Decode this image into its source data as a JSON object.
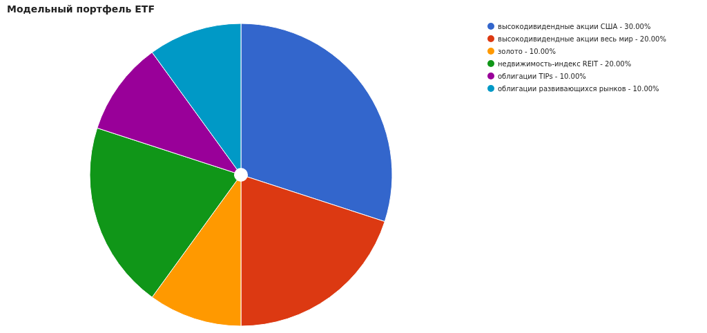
{
  "chart_data": {
    "type": "pie",
    "title": "Модельный портфель ETF",
    "categories": [
      "высокодивидендные акции США - 30.00%",
      "высокодивидендные акции весь мир - 20.00%",
      "золото - 10.00%",
      "недвижимость-индекс REIT - 20.00%",
      "облигации TIPs - 10.00%",
      "облигации развивающихся рынков - 10.00%"
    ],
    "values": [
      30,
      20,
      10,
      20,
      10,
      10
    ],
    "colors": [
      "#3366cc",
      "#dc3912",
      "#ff9900",
      "#109618",
      "#990099",
      "#0099c6"
    ],
    "legend": "top right"
  }
}
